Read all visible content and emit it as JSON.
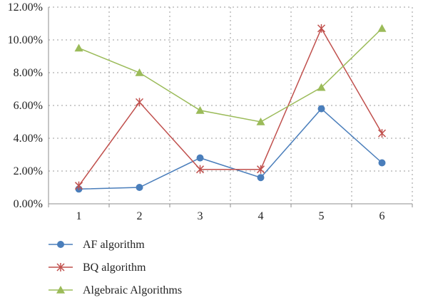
{
  "chart_data": {
    "type": "line",
    "title": "",
    "xlabel": "",
    "ylabel": "",
    "categories": [
      "1",
      "2",
      "3",
      "4",
      "5",
      "6"
    ],
    "ylim": [
      0,
      0.12
    ],
    "yticks": [
      "0.00%",
      "2.00%",
      "4.00%",
      "6.00%",
      "8.00%",
      "10.00%",
      "12.00%"
    ],
    "grid": true,
    "legend_position": "bottom-left",
    "series": [
      {
        "name": "AF algorithm",
        "values": [
          0.009,
          0.01,
          0.028,
          0.016,
          0.058,
          0.025
        ],
        "color": "#4a7ebb",
        "marker": "circle"
      },
      {
        "name": "BQ algorithm",
        "values": [
          0.011,
          0.062,
          0.021,
          0.021,
          0.107,
          0.043
        ],
        "color": "#c0504d",
        "marker": "star"
      },
      {
        "name": "Algebraic Algorithms",
        "values": [
          0.095,
          0.08,
          0.057,
          0.05,
          0.071,
          0.107
        ],
        "color": "#9bbb59",
        "marker": "triangle"
      }
    ]
  }
}
